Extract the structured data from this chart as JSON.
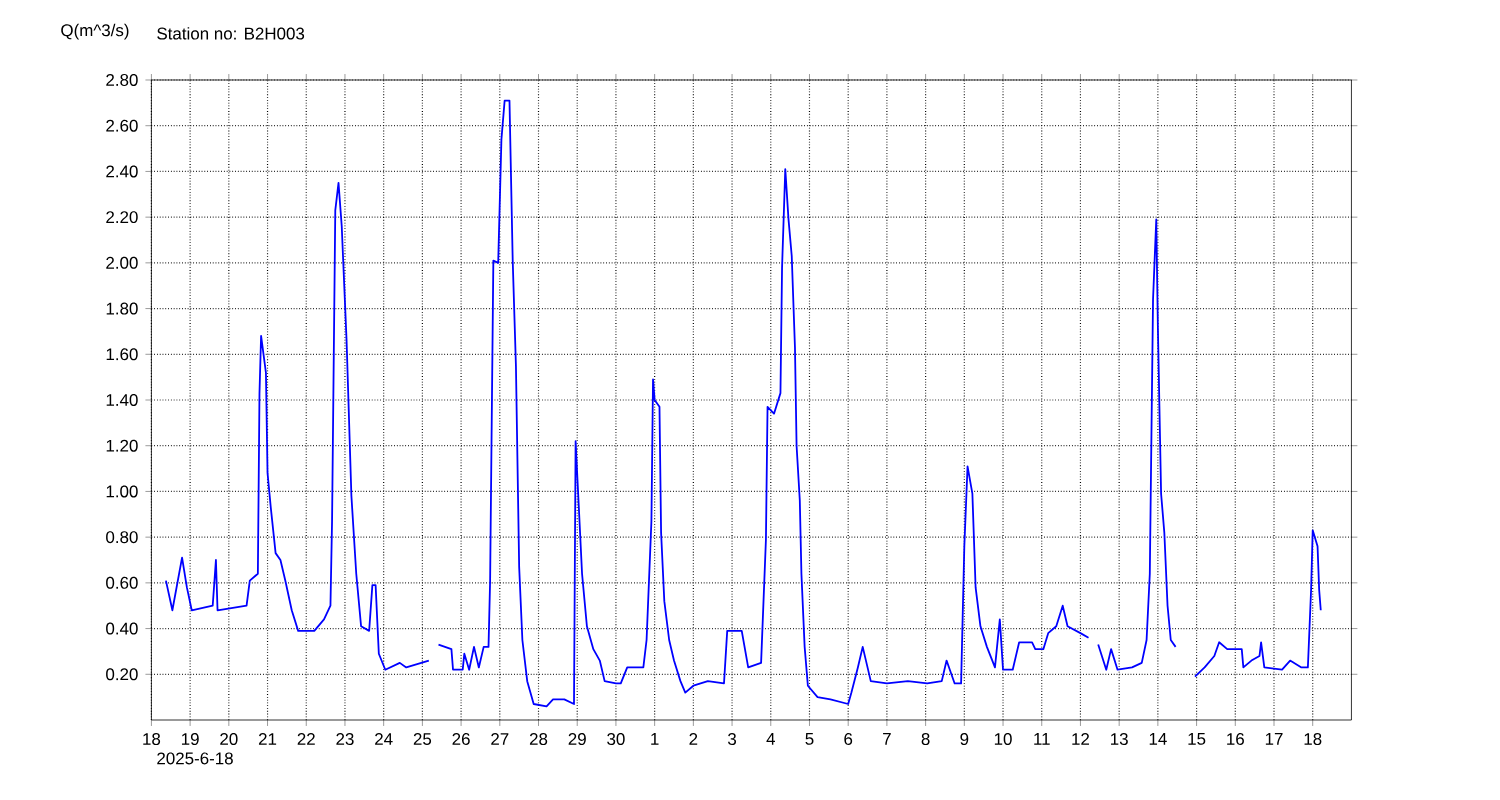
{
  "chart_data": {
    "type": "line",
    "title": "Station no: B2H003",
    "ylabel": "Q(m^3/s)",
    "annotations": [
      "2025-6-18"
    ],
    "xlim": [
      "2025-06-18",
      "2025-07-19"
    ],
    "xticks": [
      {
        "value": "2025-06-18",
        "label": "18"
      },
      {
        "value": "2025-06-19",
        "label": "19"
      },
      {
        "value": "2025-06-20",
        "label": "20"
      },
      {
        "value": "2025-06-21",
        "label": "21"
      },
      {
        "value": "2025-06-22",
        "label": "22"
      },
      {
        "value": "2025-06-23",
        "label": "23"
      },
      {
        "value": "2025-06-24",
        "label": "24"
      },
      {
        "value": "2025-06-25",
        "label": "25"
      },
      {
        "value": "2025-06-26",
        "label": "26"
      },
      {
        "value": "2025-06-27",
        "label": "27"
      },
      {
        "value": "2025-06-28",
        "label": "28"
      },
      {
        "value": "2025-06-29",
        "label": "29"
      },
      {
        "value": "2025-06-30",
        "label": "30"
      },
      {
        "value": "2025-07-01",
        "label": "1"
      },
      {
        "value": "2025-07-02",
        "label": "2"
      },
      {
        "value": "2025-07-03",
        "label": "3"
      },
      {
        "value": "2025-07-04",
        "label": "4"
      },
      {
        "value": "2025-07-05",
        "label": "5"
      },
      {
        "value": "2025-07-06",
        "label": "6"
      },
      {
        "value": "2025-07-07",
        "label": "7"
      },
      {
        "value": "2025-07-08",
        "label": "8"
      },
      {
        "value": "2025-07-09",
        "label": "9"
      },
      {
        "value": "2025-07-10",
        "label": "10"
      },
      {
        "value": "2025-07-11",
        "label": "11"
      },
      {
        "value": "2025-07-12",
        "label": "12"
      },
      {
        "value": "2025-07-13",
        "label": "13"
      },
      {
        "value": "2025-07-14",
        "label": "14"
      },
      {
        "value": "2025-07-15",
        "label": "15"
      },
      {
        "value": "2025-07-16",
        "label": "16"
      },
      {
        "value": "2025-07-17",
        "label": "17"
      },
      {
        "value": "2025-07-18",
        "label": "18"
      }
    ],
    "ylim": [
      0,
      2.8
    ],
    "yticks": [
      {
        "value": 0.2,
        "label": "0.20"
      },
      {
        "value": 0.4,
        "label": "0.40"
      },
      {
        "value": 0.6,
        "label": "0.60"
      },
      {
        "value": 0.8,
        "label": "0.80"
      },
      {
        "value": 1.0,
        "label": "1.00"
      },
      {
        "value": 1.2,
        "label": "1.20"
      },
      {
        "value": 1.4,
        "label": "1.40"
      },
      {
        "value": 1.6,
        "label": "1.60"
      },
      {
        "value": 1.8,
        "label": "1.80"
      },
      {
        "value": 2.0,
        "label": "2.00"
      },
      {
        "value": 2.2,
        "label": "2.20"
      },
      {
        "value": 2.4,
        "label": "2.40"
      },
      {
        "value": 2.6,
        "label": "2.60"
      },
      {
        "value": 2.8,
        "label": "2.80"
      }
    ],
    "grid": true,
    "series": [
      {
        "color": "#0000ff",
        "x": [
          "2025-06-18T09:00",
          "2025-06-18T13:00",
          "2025-06-18T19:00",
          "2025-06-18T22:00",
          "2025-06-19T01:00",
          "2025-06-19T14:00",
          "2025-06-19T16:00",
          "2025-06-19T17:00",
          "2025-06-20T11:00",
          "2025-06-20T13:00",
          "2025-06-20T18:00",
          "2025-06-20T19:00",
          "2025-06-20T20:00",
          "2025-06-20T23:00",
          "2025-06-21T00:00",
          "2025-06-21T02:00",
          "2025-06-21T05:00",
          "2025-06-21T08:00",
          "2025-06-21T11:00",
          "2025-06-21T15:00",
          "2025-06-21T19:00",
          "2025-06-22T05:00",
          "2025-06-22T11:00",
          "2025-06-22T15:00",
          "2025-06-22T16:00",
          "2025-06-22T18:00",
          "2025-06-22T20:00",
          "2025-06-22T22:00",
          "2025-06-23T01:00",
          "2025-06-23T04:00",
          "2025-06-23T07:00",
          "2025-06-23T10:00",
          "2025-06-23T15:00",
          "2025-06-23T17:00",
          "2025-06-23T19:00",
          "2025-06-23T21:00",
          "2025-06-24T01:00",
          "2025-06-24T10:00",
          "2025-06-24T14:00",
          "2025-06-25T04:00",
          "2025-06-25T07:00",
          "2025-06-25T10:00",
          "2025-06-25T18:00",
          "2025-06-25T19:00",
          "2025-06-26T01:00",
          "2025-06-26T02:00",
          "2025-06-26T05:00",
          "2025-06-26T08:00",
          "2025-06-26T11:00",
          "2025-06-26T14:00",
          "2025-06-26T17:00",
          "2025-06-26T18:00",
          "2025-06-26T20:00",
          "2025-06-26T23:00",
          "2025-06-27T01:00",
          "2025-06-27T03:00",
          "2025-06-27T06:00",
          "2025-06-27T08:00",
          "2025-06-27T10:00",
          "2025-06-27T12:00",
          "2025-06-27T14:00",
          "2025-06-27T17:00",
          "2025-06-27T21:00",
          "2025-06-28T05:00",
          "2025-06-28T09:00",
          "2025-06-28T16:00",
          "2025-06-28T22:00",
          "2025-06-28T23:00",
          "2025-06-29T01:00",
          "2025-06-29T03:00",
          "2025-06-29T06:00",
          "2025-06-29T10:00",
          "2025-06-29T14:00",
          "2025-06-29T17:00",
          "2025-06-30T00:00",
          "2025-06-30T03:00",
          "2025-06-30T07:00",
          "2025-06-30T17:00",
          "2025-06-30T19:00",
          "2025-06-30T22:00",
          "2025-06-30T23:00",
          "2025-07-01T00:00",
          "2025-07-01T03:00",
          "2025-07-01T04:00",
          "2025-07-01T06:00",
          "2025-07-01T09:00",
          "2025-07-01T12:00",
          "2025-07-01T16:00",
          "2025-07-01T19:00",
          "2025-07-02T00:00",
          "2025-07-02T09:00",
          "2025-07-02T19:00",
          "2025-07-02T21:00",
          "2025-07-03T06:00",
          "2025-07-03T10:00",
          "2025-07-03T18:00",
          "2025-07-03T21:00",
          "2025-07-03T22:00",
          "2025-07-04T02:00",
          "2025-07-04T06:00",
          "2025-07-04T07:00",
          "2025-07-04T09:00",
          "2025-07-04T11:00",
          "2025-07-04T13:00",
          "2025-07-04T15:00",
          "2025-07-04T16:00",
          "2025-07-04T18:00",
          "2025-07-04T19:00",
          "2025-07-04T21:00",
          "2025-07-04T23:00",
          "2025-07-05T05:00",
          "2025-07-05T13:00",
          "2025-07-06T00:00",
          "2025-07-06T02:00",
          "2025-07-06T06:00",
          "2025-07-06T09:00",
          "2025-07-06T14:00",
          "2025-07-07T00:00",
          "2025-07-07T13:00",
          "2025-07-08T01:00",
          "2025-07-08T10:00",
          "2025-07-08T13:00",
          "2025-07-08T18:00",
          "2025-07-08T22:00",
          "2025-07-09T00:00",
          "2025-07-09T02:00",
          "2025-07-09T05:00",
          "2025-07-09T07:00",
          "2025-07-09T10:00",
          "2025-07-09T14:00",
          "2025-07-09T19:00",
          "2025-07-09T22:00",
          "2025-07-10T00:00",
          "2025-07-10T06:00",
          "2025-07-10T10:00",
          "2025-07-10T18:00",
          "2025-07-10T20:00",
          "2025-07-11T01:00",
          "2025-07-11T04:00",
          "2025-07-11T09:00",
          "2025-07-11T13:00",
          "2025-07-11T16:00",
          "2025-07-12T00:00",
          "2025-07-12T05:00",
          "2025-07-12T08:00",
          "2025-07-12T11:00",
          "2025-07-12T16:00",
          "2025-07-12T19:00",
          "2025-07-12T23:00",
          "2025-07-13T08:00",
          "2025-07-13T14:00",
          "2025-07-13T17:00",
          "2025-07-13T19:00",
          "2025-07-13T21:00",
          "2025-07-13T23:00",
          "2025-07-14T00:00",
          "2025-07-14T02:00",
          "2025-07-14T04:00",
          "2025-07-14T06:00",
          "2025-07-14T08:00",
          "2025-07-14T11:00",
          "2025-07-14T16:00",
          "2025-07-14T23:00",
          "2025-07-15T05:00",
          "2025-07-15T11:00",
          "2025-07-15T14:00",
          "2025-07-15T19:00",
          "2025-07-16T04:00",
          "2025-07-16T05:00",
          "2025-07-16T10:00",
          "2025-07-16T15:00",
          "2025-07-16T16:00",
          "2025-07-16T18:00",
          "2025-07-17T05:00",
          "2025-07-17T10:00",
          "2025-07-17T17:00",
          "2025-07-17T21:00",
          "2025-07-17T23:00",
          "2025-07-18T00:00",
          "2025-07-18T03:00",
          "2025-07-18T04:00",
          "2025-07-18T05:00"
        ],
        "values": [
          0.61,
          0.48,
          0.71,
          0.58,
          0.48,
          0.5,
          0.7,
          0.48,
          0.5,
          0.61,
          0.64,
          1.43,
          1.68,
          1.52,
          1.08,
          0.93,
          0.73,
          0.7,
          0.61,
          0.48,
          0.39,
          0.39,
          0.44,
          0.5,
          0.87,
          2.23,
          2.35,
          2.16,
          1.66,
          0.98,
          0.64,
          0.41,
          0.39,
          0.59,
          0.59,
          0.29,
          0.22,
          0.25,
          0.23,
          0.26,
          null,
          0.33,
          0.31,
          0.22,
          0.22,
          0.29,
          0.22,
          0.32,
          0.23,
          0.32,
          0.32,
          0.61,
          2.01,
          2.0,
          2.54,
          2.71,
          2.71,
          2.01,
          1.55,
          0.67,
          0.35,
          0.17,
          0.07,
          0.06,
          0.09,
          0.09,
          0.07,
          1.22,
          0.93,
          0.64,
          0.41,
          0.31,
          0.26,
          0.17,
          0.16,
          0.16,
          0.23,
          0.23,
          0.35,
          0.87,
          1.49,
          1.4,
          1.37,
          0.82,
          0.52,
          0.35,
          0.26,
          0.17,
          0.12,
          0.15,
          0.17,
          0.16,
          0.39,
          0.39,
          0.23,
          0.25,
          0.79,
          1.37,
          1.34,
          1.43,
          1.98,
          2.41,
          2.19,
          2.03,
          1.63,
          1.2,
          0.96,
          0.64,
          0.32,
          0.15,
          0.1,
          0.09,
          0.07,
          0.12,
          0.23,
          0.32,
          0.17,
          0.16,
          0.17,
          0.16,
          0.17,
          0.26,
          0.16,
          0.16,
          0.76,
          1.11,
          0.99,
          0.58,
          0.41,
          0.32,
          0.23,
          0.44,
          0.22,
          0.22,
          0.34,
          0.34,
          0.31,
          0.31,
          0.38,
          0.41,
          0.5,
          0.41,
          0.38,
          0.36,
          null,
          0.33,
          0.22,
          0.31,
          0.22,
          0.23,
          0.25,
          0.35,
          0.64,
          1.84,
          2.19,
          1.72,
          0.99,
          0.82,
          0.5,
          0.35,
          0.32,
          null,
          0.19,
          0.23,
          0.28,
          0.34,
          0.31,
          0.31,
          0.23,
          0.26,
          0.28,
          0.34,
          0.23,
          0.22,
          0.26,
          0.23,
          0.23,
          0.57,
          0.83,
          0.76,
          0.57,
          0.48
        ]
      }
    ]
  }
}
